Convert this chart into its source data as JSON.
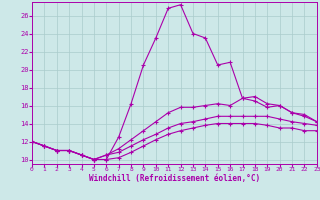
{
  "xlabel": "Windchill (Refroidissement éolien,°C)",
  "background_color": "#cde8e8",
  "grid_color": "#aacccc",
  "line_color": "#aa00aa",
  "xlim": [
    0,
    23
  ],
  "ylim": [
    9.5,
    27.5
  ],
  "xticks": [
    0,
    1,
    2,
    3,
    4,
    5,
    6,
    7,
    8,
    9,
    10,
    11,
    12,
    13,
    14,
    15,
    16,
    17,
    18,
    19,
    20,
    21,
    22,
    23
  ],
  "yticks": [
    10,
    12,
    14,
    16,
    18,
    20,
    22,
    24,
    26
  ],
  "line1_x": [
    0,
    1,
    2,
    3,
    4,
    5,
    6,
    7,
    8,
    9,
    10,
    11,
    12,
    13,
    14,
    15,
    16,
    17,
    18,
    19,
    20,
    21,
    22,
    23
  ],
  "line1_y": [
    12.0,
    11.5,
    11.0,
    11.0,
    10.5,
    10.0,
    10.0,
    12.5,
    16.2,
    20.5,
    23.5,
    26.8,
    27.2,
    24.0,
    23.5,
    20.5,
    20.8,
    16.8,
    17.0,
    16.2,
    16.0,
    15.2,
    14.8,
    14.2
  ],
  "line2_x": [
    0,
    1,
    2,
    3,
    4,
    5,
    6,
    7,
    8,
    9,
    10,
    11,
    12,
    13,
    14,
    15,
    16,
    17,
    18,
    19,
    20,
    21,
    22,
    23
  ],
  "line2_y": [
    12.0,
    11.5,
    11.0,
    11.0,
    10.5,
    10.0,
    10.5,
    11.2,
    12.2,
    13.2,
    14.2,
    15.2,
    15.8,
    15.8,
    16.0,
    16.2,
    16.0,
    16.8,
    16.5,
    15.8,
    16.0,
    15.2,
    15.0,
    14.2
  ],
  "line3_x": [
    0,
    1,
    2,
    3,
    4,
    5,
    6,
    7,
    8,
    9,
    10,
    11,
    12,
    13,
    14,
    15,
    16,
    17,
    18,
    19,
    20,
    21,
    22,
    23
  ],
  "line3_y": [
    12.0,
    11.5,
    11.0,
    11.0,
    10.5,
    10.0,
    10.5,
    10.8,
    11.5,
    12.2,
    12.8,
    13.5,
    14.0,
    14.2,
    14.5,
    14.8,
    14.8,
    14.8,
    14.8,
    14.8,
    14.5,
    14.2,
    14.0,
    13.8
  ],
  "line4_x": [
    0,
    1,
    2,
    3,
    4,
    5,
    6,
    7,
    8,
    9,
    10,
    11,
    12,
    13,
    14,
    15,
    16,
    17,
    18,
    19,
    20,
    21,
    22,
    23
  ],
  "line4_y": [
    12.0,
    11.5,
    11.0,
    11.0,
    10.5,
    10.0,
    10.0,
    10.2,
    10.8,
    11.5,
    12.2,
    12.8,
    13.2,
    13.5,
    13.8,
    14.0,
    14.0,
    14.0,
    14.0,
    13.8,
    13.5,
    13.5,
    13.2,
    13.2
  ]
}
